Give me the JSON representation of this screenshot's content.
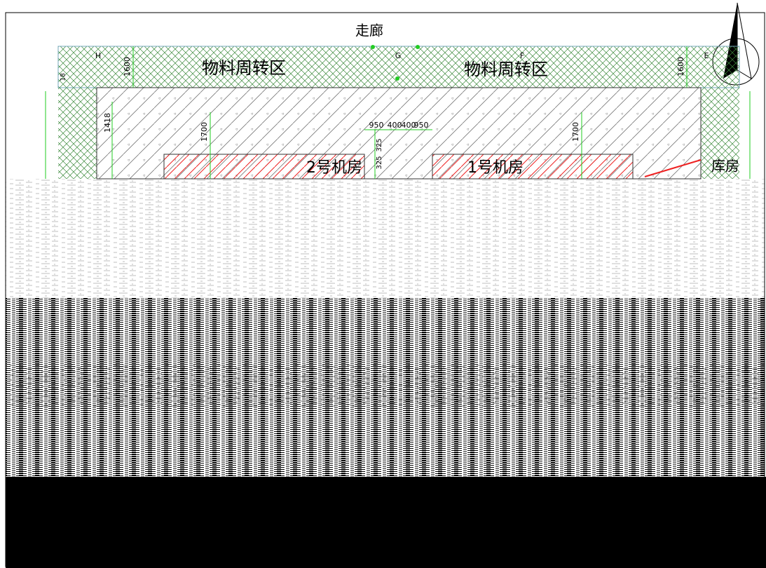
{
  "corridor": "走廊",
  "zones": [
    "物料周转区",
    "物料周转区"
  ],
  "axes": [
    "H",
    "G",
    "F",
    "E"
  ],
  "dims": {
    "left_band": "1600",
    "right_band": "1600",
    "left_offset": "1418",
    "room2_depth": "1700",
    "room1_depth": "1700",
    "door": [
      "950",
      "400",
      "400",
      "950"
    ],
    "door_v": [
      "325",
      "325"
    ],
    "small": "18"
  },
  "rooms": [
    "2号机房",
    "1号机房",
    "库房"
  ]
}
